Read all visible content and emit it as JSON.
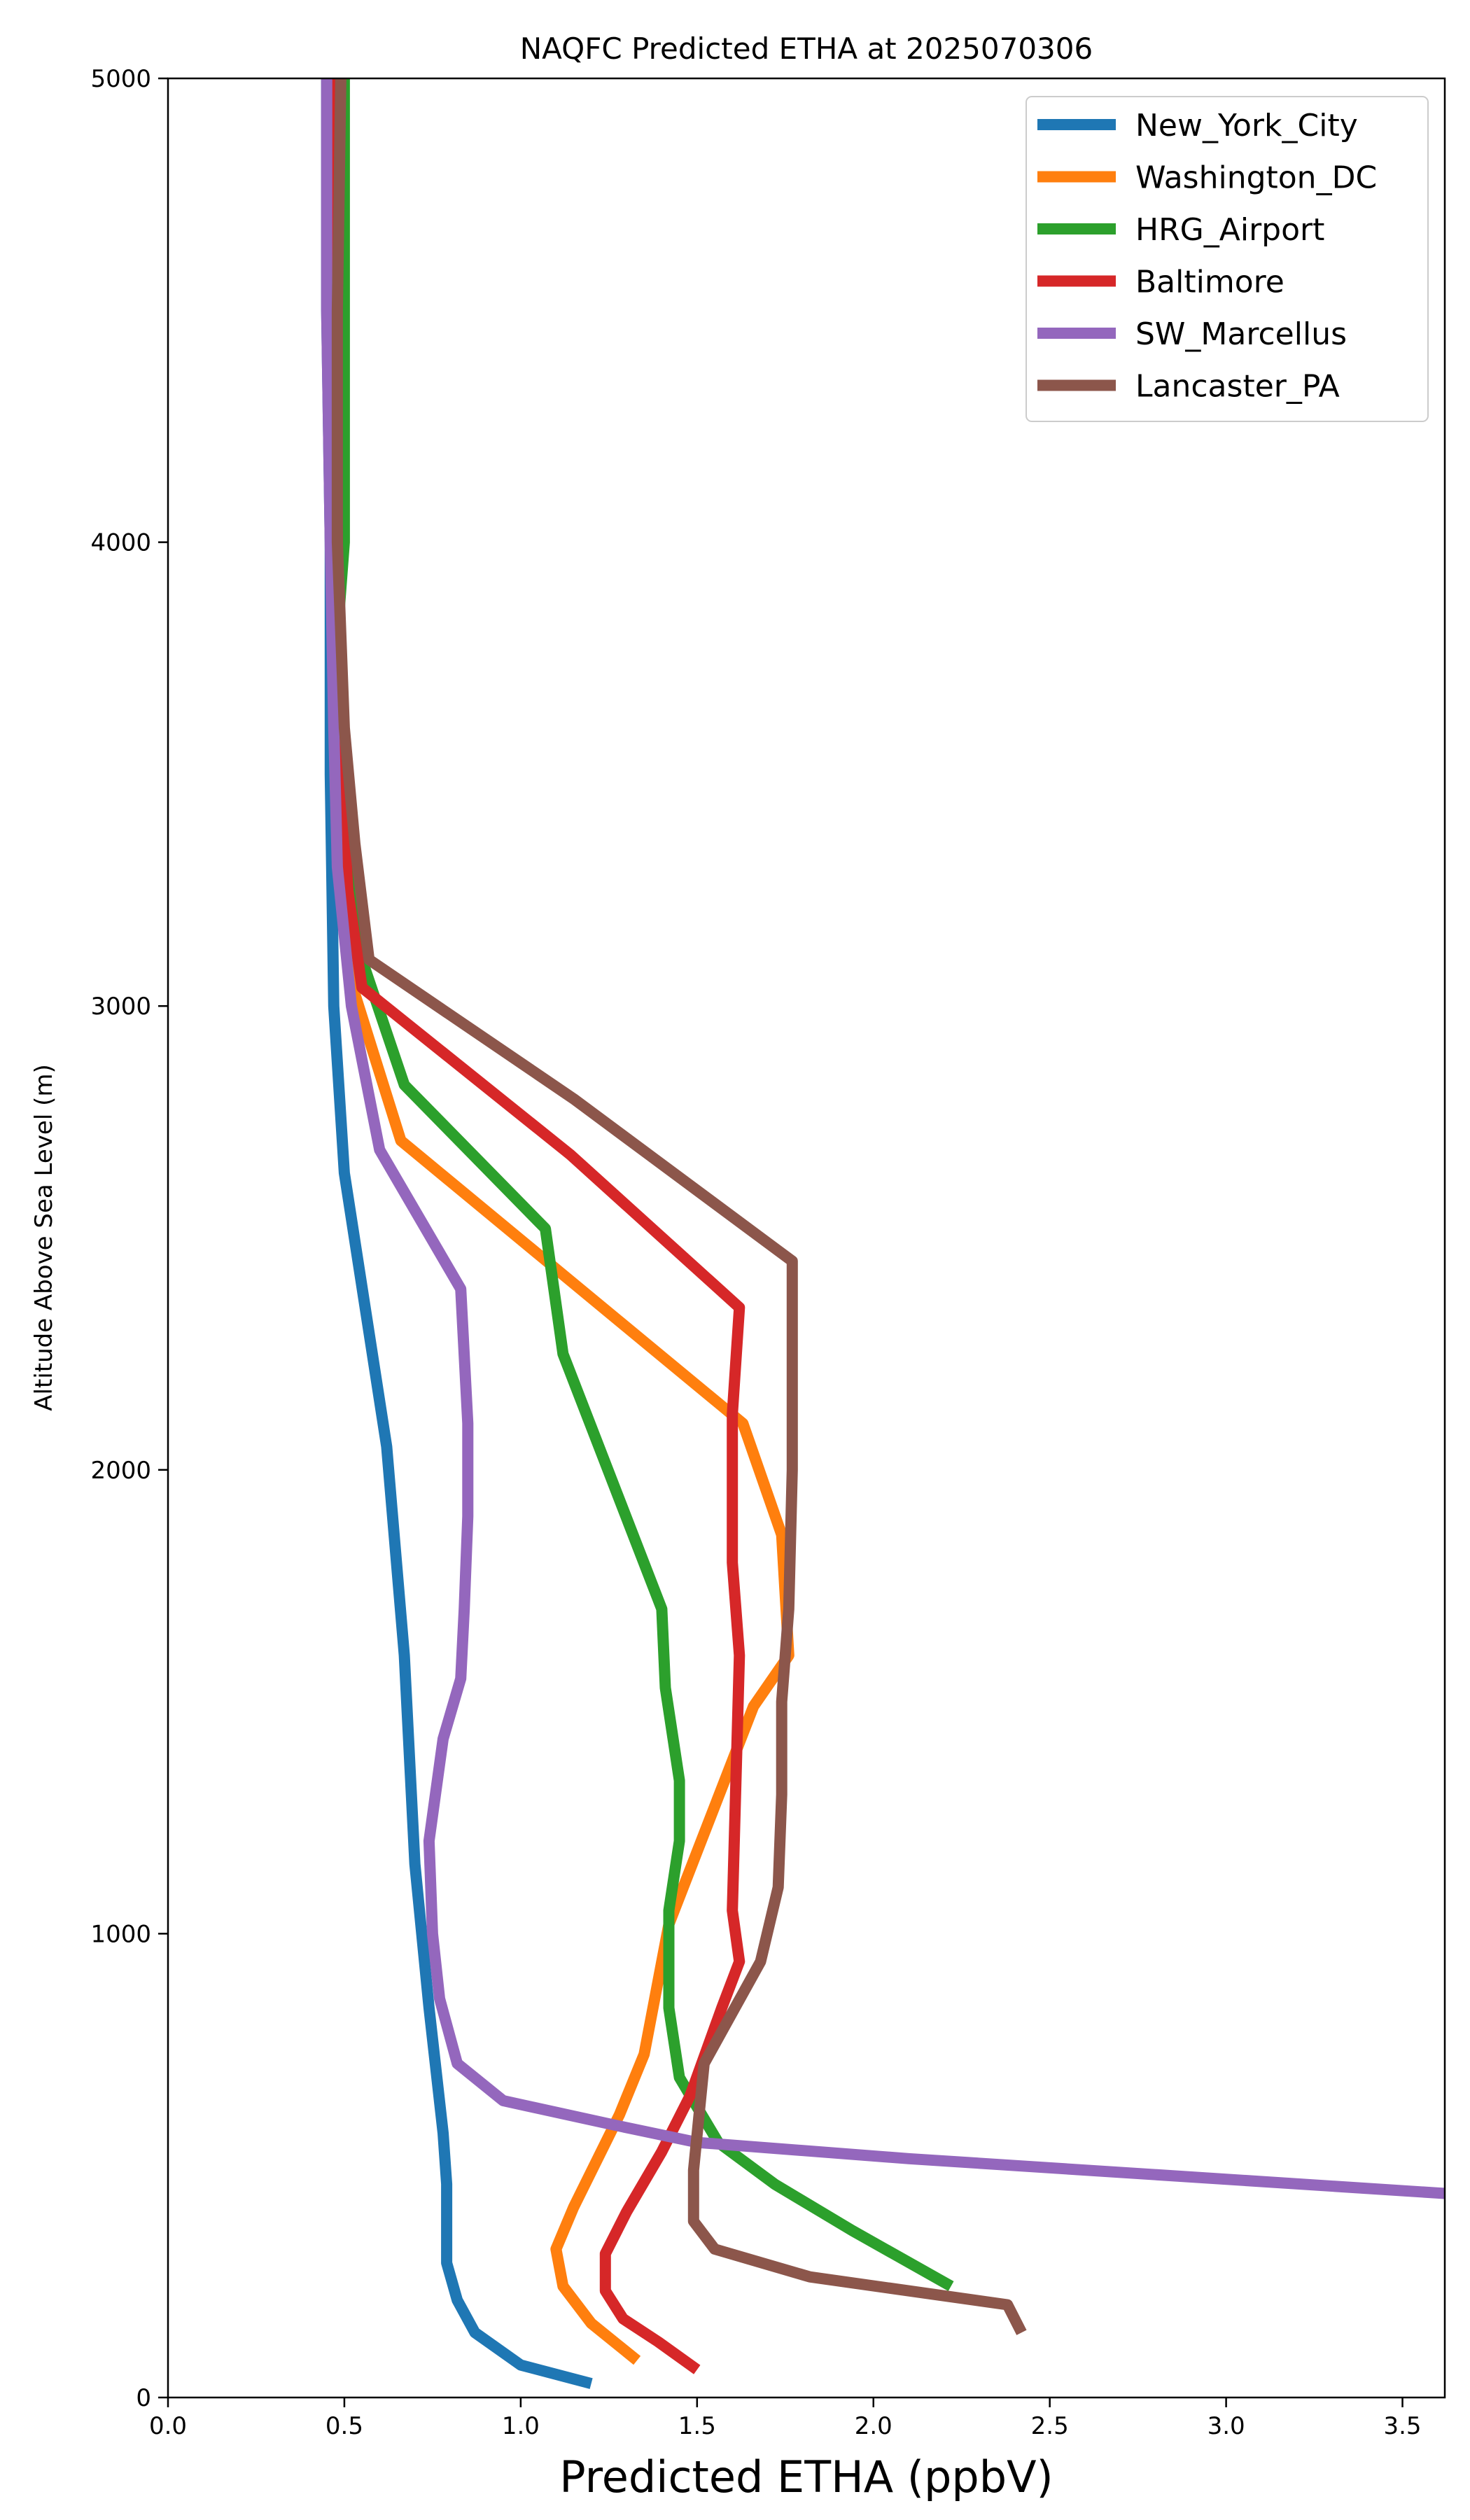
{
  "chart_data": {
    "type": "line",
    "title": "NAQFC Predicted ETHA at 2025070306",
    "xlabel": "Predicted ETHA (ppbV)",
    "ylabel": "Altitude Above Sea Level (m)",
    "xlim": [
      0.0,
      3.62
    ],
    "ylim": [
      0,
      5000
    ],
    "xticks": [
      "0.0",
      "0.5",
      "1.0",
      "1.5",
      "2.0",
      "2.5",
      "3.0",
      "3.5"
    ],
    "xtick_values": [
      0.0,
      0.5,
      1.0,
      1.5,
      2.0,
      2.5,
      3.0,
      3.5
    ],
    "yticks": [
      "0",
      "1000",
      "2000",
      "3000",
      "4000",
      "5000"
    ],
    "ytick_values": [
      0,
      1000,
      2000,
      3000,
      4000,
      5000
    ],
    "grid": false,
    "legend_position": "top-right",
    "series": [
      {
        "name": "New_York_City",
        "color": "#1f77b4",
        "points": [
          [
            1.2,
            30
          ],
          [
            1.0,
            70
          ],
          [
            0.87,
            140
          ],
          [
            0.82,
            210
          ],
          [
            0.79,
            290
          ],
          [
            0.79,
            460
          ],
          [
            0.78,
            570
          ],
          [
            0.74,
            840
          ],
          [
            0.7,
            1150
          ],
          [
            0.67,
            1600
          ],
          [
            0.62,
            2050
          ],
          [
            0.5,
            2640
          ],
          [
            0.47,
            3000
          ],
          [
            0.46,
            3500
          ],
          [
            0.46,
            4000
          ],
          [
            0.45,
            4500
          ],
          [
            0.45,
            5000
          ]
        ]
      },
      {
        "name": "Washington_DC",
        "color": "#ff7f0e",
        "points": [
          [
            1.33,
            80
          ],
          [
            1.2,
            160
          ],
          [
            1.12,
            240
          ],
          [
            1.1,
            320
          ],
          [
            1.15,
            410
          ],
          [
            1.28,
            610
          ],
          [
            1.35,
            740
          ],
          [
            1.42,
            1020
          ],
          [
            1.66,
            1490
          ],
          [
            1.76,
            1600
          ],
          [
            1.74,
            1860
          ],
          [
            1.63,
            2100
          ],
          [
            0.66,
            2710
          ],
          [
            0.52,
            3050
          ],
          [
            0.5,
            3300
          ],
          [
            0.49,
            3600
          ],
          [
            0.48,
            4000
          ],
          [
            0.48,
            4500
          ],
          [
            0.47,
            5000
          ]
        ]
      },
      {
        "name": "HRG_Airport",
        "color": "#2ca02c",
        "points": [
          [
            2.22,
            240
          ],
          [
            1.94,
            360
          ],
          [
            1.72,
            460
          ],
          [
            1.56,
            550
          ],
          [
            1.45,
            690
          ],
          [
            1.42,
            840
          ],
          [
            1.42,
            1050
          ],
          [
            1.45,
            1200
          ],
          [
            1.45,
            1330
          ],
          [
            1.41,
            1530
          ],
          [
            1.4,
            1700
          ],
          [
            1.12,
            2250
          ],
          [
            1.07,
            2520
          ],
          [
            0.67,
            2830
          ],
          [
            0.55,
            3100
          ],
          [
            0.48,
            3500
          ],
          [
            0.48,
            3800
          ],
          [
            0.5,
            4000
          ],
          [
            0.5,
            4400
          ],
          [
            0.5,
            4700
          ],
          [
            0.5,
            5000
          ]
        ]
      },
      {
        "name": "Baltimore",
        "color": "#d62728",
        "points": [
          [
            1.5,
            60
          ],
          [
            1.39,
            120
          ],
          [
            1.29,
            170
          ],
          [
            1.24,
            230
          ],
          [
            1.24,
            310
          ],
          [
            1.3,
            400
          ],
          [
            1.4,
            530
          ],
          [
            1.48,
            650
          ],
          [
            1.57,
            840
          ],
          [
            1.62,
            940
          ],
          [
            1.6,
            1050
          ],
          [
            1.62,
            1600
          ],
          [
            1.6,
            1800
          ],
          [
            1.6,
            2120
          ],
          [
            1.62,
            2350
          ],
          [
            1.14,
            2680
          ],
          [
            0.55,
            3040
          ],
          [
            0.51,
            3250
          ],
          [
            0.49,
            3500
          ],
          [
            0.48,
            4000
          ],
          [
            0.47,
            4500
          ],
          [
            0.47,
            5000
          ]
        ]
      },
      {
        "name": "SW_Marcellus",
        "color": "#9467bd",
        "points": [
          [
            3.62,
            440
          ],
          [
            2.1,
            515
          ],
          [
            1.5,
            550
          ],
          [
            1.25,
            590
          ],
          [
            0.95,
            640
          ],
          [
            0.82,
            720
          ],
          [
            0.77,
            860
          ],
          [
            0.75,
            1000
          ],
          [
            0.74,
            1200
          ],
          [
            0.78,
            1420
          ],
          [
            0.83,
            1550
          ],
          [
            0.84,
            1700
          ],
          [
            0.85,
            1900
          ],
          [
            0.85,
            2100
          ],
          [
            0.83,
            2390
          ],
          [
            0.6,
            2690
          ],
          [
            0.52,
            3000
          ],
          [
            0.48,
            3300
          ],
          [
            0.47,
            3600
          ],
          [
            0.46,
            4000
          ],
          [
            0.45,
            4500
          ],
          [
            0.45,
            5000
          ]
        ]
      },
      {
        "name": "Lancaster_PA",
        "color": "#8c564b",
        "points": [
          [
            2.42,
            140
          ],
          [
            2.38,
            200
          ],
          [
            1.82,
            260
          ],
          [
            1.55,
            320
          ],
          [
            1.49,
            380
          ],
          [
            1.49,
            490
          ],
          [
            1.52,
            720
          ],
          [
            1.6,
            830
          ],
          [
            1.68,
            940
          ],
          [
            1.73,
            1100
          ],
          [
            1.74,
            1300
          ],
          [
            1.74,
            1500
          ],
          [
            1.76,
            1700
          ],
          [
            1.77,
            2000
          ],
          [
            1.77,
            2200
          ],
          [
            1.77,
            2450
          ],
          [
            1.15,
            2800
          ],
          [
            0.57,
            3100
          ],
          [
            0.53,
            3350
          ],
          [
            0.5,
            3600
          ],
          [
            0.48,
            4000
          ],
          [
            0.48,
            4500
          ],
          [
            0.49,
            5000
          ]
        ]
      }
    ]
  }
}
